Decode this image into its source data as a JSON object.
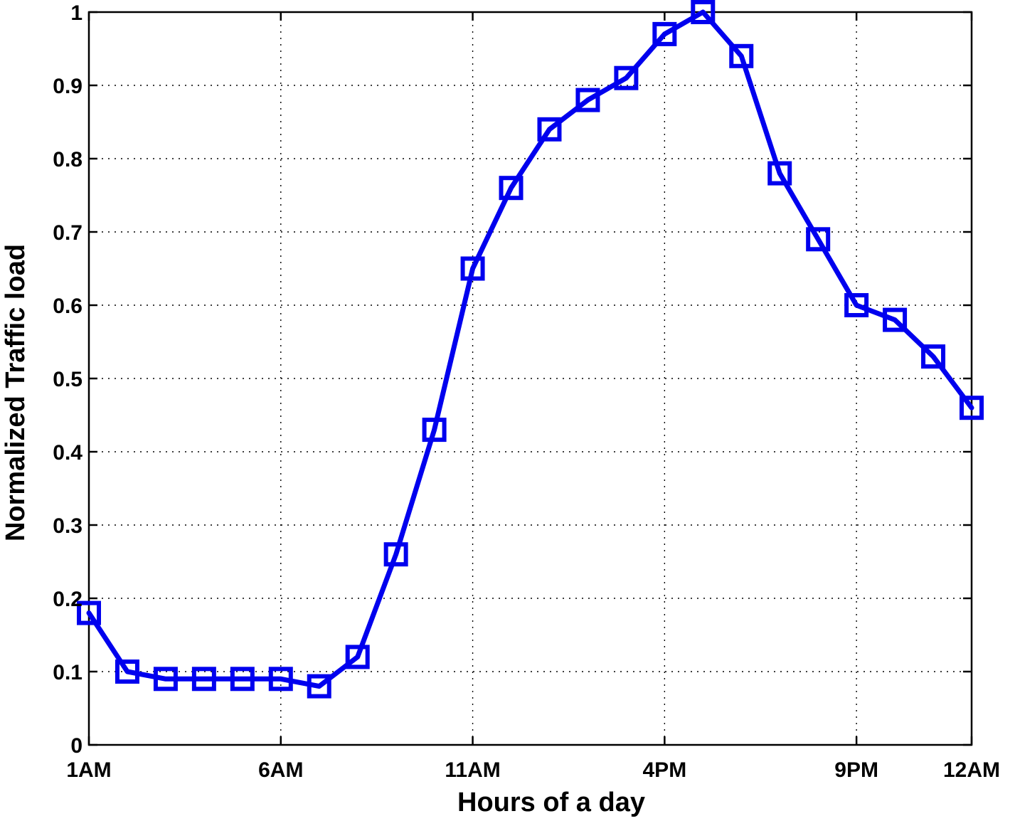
{
  "chart_data": {
    "type": "line",
    "xlabel": "Hours of a day",
    "ylabel": "Normalized Traffic load",
    "xlim": [
      1,
      24
    ],
    "ylim": [
      0,
      1
    ],
    "grid": true,
    "x_ticks": [
      {
        "value": 1,
        "label": "1AM"
      },
      {
        "value": 6,
        "label": "6AM"
      },
      {
        "value": 11,
        "label": "11AM"
      },
      {
        "value": 16,
        "label": "4PM"
      },
      {
        "value": 21,
        "label": "9PM"
      },
      {
        "value": 24,
        "label": "12AM"
      }
    ],
    "y_ticks": [
      {
        "value": 0,
        "label": "0"
      },
      {
        "value": 0.1,
        "label": "0.1"
      },
      {
        "value": 0.2,
        "label": "0.2"
      },
      {
        "value": 0.3,
        "label": "0.3"
      },
      {
        "value": 0.4,
        "label": "0.4"
      },
      {
        "value": 0.5,
        "label": "0.5"
      },
      {
        "value": 0.6,
        "label": "0.6"
      },
      {
        "value": 0.7,
        "label": "0.7"
      },
      {
        "value": 0.8,
        "label": "0.8"
      },
      {
        "value": 0.9,
        "label": "0.9"
      },
      {
        "value": 1,
        "label": "1"
      }
    ],
    "series": [
      {
        "color": "#0000ee",
        "marker": "square",
        "x": [
          1,
          2,
          3,
          4,
          5,
          6,
          7,
          8,
          9,
          10,
          11,
          12,
          13,
          14,
          15,
          16,
          17,
          18,
          19,
          20,
          21,
          22,
          23,
          24
        ],
        "y": [
          0.18,
          0.1,
          0.09,
          0.09,
          0.09,
          0.09,
          0.08,
          0.12,
          0.26,
          0.43,
          0.65,
          0.76,
          0.84,
          0.88,
          0.91,
          0.97,
          1.0,
          0.94,
          0.78,
          0.69,
          0.6,
          0.58,
          0.53,
          0.46
        ]
      }
    ]
  }
}
